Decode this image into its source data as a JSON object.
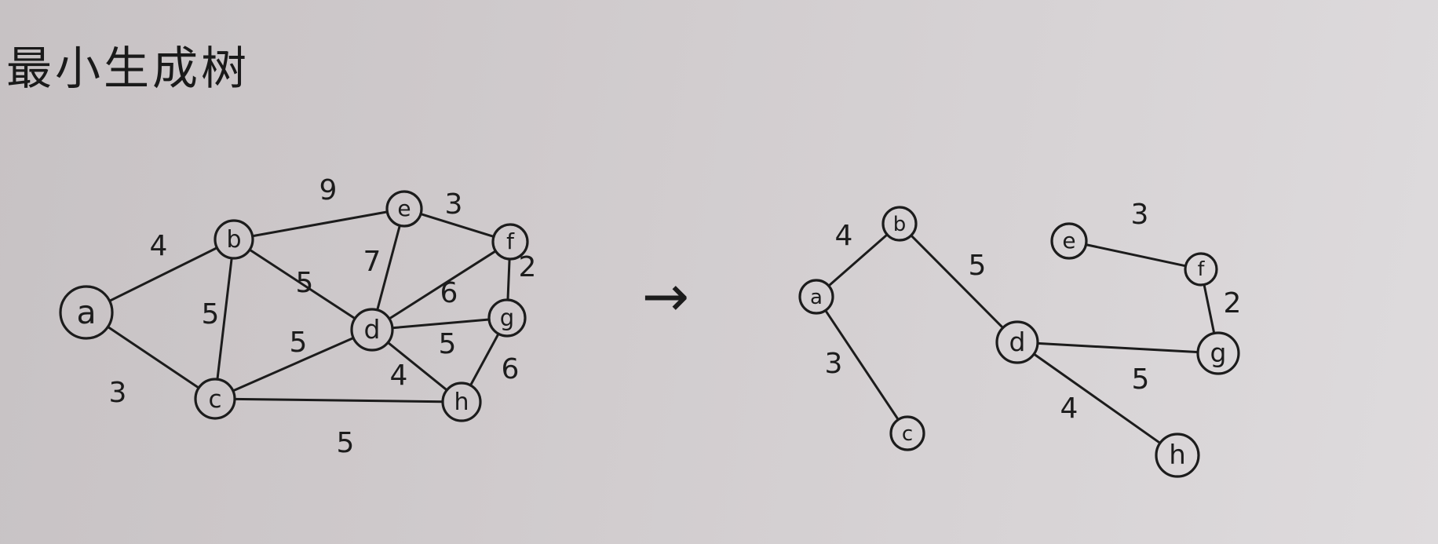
{
  "title": "最小生成树",
  "arrow": "→",
  "graphs": [
    {
      "name": "original",
      "nodes": [
        "a",
        "b",
        "c",
        "d",
        "e",
        "f",
        "g",
        "h"
      ],
      "edges": [
        {
          "from": "a",
          "to": "b",
          "weight": "4"
        },
        {
          "from": "a",
          "to": "c",
          "weight": "3"
        },
        {
          "from": "b",
          "to": "c",
          "weight": "5"
        },
        {
          "from": "b",
          "to": "d",
          "weight": "5"
        },
        {
          "from": "b",
          "to": "e",
          "weight": "9"
        },
        {
          "from": "c",
          "to": "d",
          "weight": "5"
        },
        {
          "from": "c",
          "to": "h",
          "weight": "5"
        },
        {
          "from": "d",
          "to": "e",
          "weight": "7"
        },
        {
          "from": "d",
          "to": "f",
          "weight": "6"
        },
        {
          "from": "d",
          "to": "g",
          "weight": "5"
        },
        {
          "from": "d",
          "to": "h",
          "weight": "4"
        },
        {
          "from": "e",
          "to": "f",
          "weight": "3"
        },
        {
          "from": "f",
          "to": "g",
          "weight": "2"
        },
        {
          "from": "g",
          "to": "h",
          "weight": "6"
        }
      ]
    },
    {
      "name": "mst",
      "nodes": [
        "a",
        "b",
        "c",
        "d",
        "e",
        "f",
        "g",
        "h"
      ],
      "edges": [
        {
          "from": "a",
          "to": "b",
          "weight": "4"
        },
        {
          "from": "a",
          "to": "c",
          "weight": "3"
        },
        {
          "from": "b",
          "to": "d",
          "weight": "5"
        },
        {
          "from": "d",
          "to": "g",
          "weight": "5"
        },
        {
          "from": "d",
          "to": "h",
          "weight": "4"
        },
        {
          "from": "e",
          "to": "f",
          "weight": "3"
        },
        {
          "from": "f",
          "to": "g",
          "weight": "2"
        }
      ]
    }
  ]
}
